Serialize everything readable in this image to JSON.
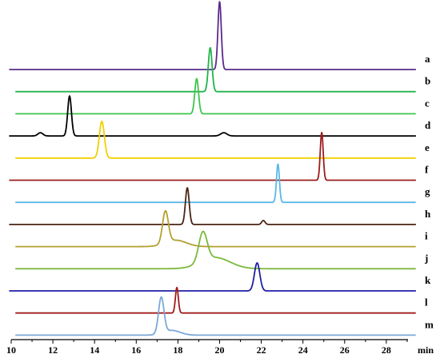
{
  "chart_data": {
    "type": "line",
    "title": "",
    "xlabel": "min",
    "ylabel": "",
    "xlim": [
      10,
      30
    ],
    "x_ticks": [
      10,
      12,
      14,
      16,
      18,
      20,
      22,
      24,
      26,
      28
    ],
    "x_tick_labels": [
      "10",
      "12",
      "14",
      "16",
      "18",
      "20",
      "22",
      "24",
      "26",
      "28"
    ],
    "grid": false,
    "series": [
      {
        "name": "a",
        "color": "#5b2a8c",
        "offset_start": 9.9,
        "peaks": [
          {
            "t": 20.0,
            "h": 85,
            "w": 0.08
          }
        ]
      },
      {
        "name": "b",
        "color": "#22b34a",
        "offset_start": 10.2,
        "peaks": [
          {
            "t": 19.55,
            "h": 55,
            "w": 0.09
          }
        ]
      },
      {
        "name": "c",
        "color": "#3ec54a",
        "offset_start": 10.2,
        "peaks": [
          {
            "t": 18.9,
            "h": 44,
            "w": 0.09
          }
        ]
      },
      {
        "name": "d",
        "color": "#000000",
        "offset_start": 9.9,
        "peaks": [
          {
            "t": 12.8,
            "h": 50,
            "w": 0.09
          },
          {
            "t": 11.4,
            "h": 4,
            "w": 0.12
          },
          {
            "t": 20.2,
            "h": 4,
            "w": 0.15
          }
        ]
      },
      {
        "name": "e",
        "color": "#f0d000",
        "offset_start": 10.2,
        "peaks": [
          {
            "t": 14.35,
            "h": 46,
            "w": 0.12
          }
        ]
      },
      {
        "name": "f",
        "color": "#9b1c1c",
        "offset_start": 9.9,
        "peaks": [
          {
            "t": 24.9,
            "h": 60,
            "w": 0.07
          }
        ]
      },
      {
        "name": "g",
        "color": "#5bb8e8",
        "offset_start": 10.2,
        "peaks": [
          {
            "t": 22.8,
            "h": 48,
            "w": 0.07
          }
        ]
      },
      {
        "name": "h",
        "color": "#4a2414",
        "offset_start": 9.9,
        "peaks": [
          {
            "t": 18.45,
            "h": 46,
            "w": 0.09
          },
          {
            "t": 22.1,
            "h": 5,
            "w": 0.08
          }
        ]
      },
      {
        "name": "i",
        "color": "#b3a030",
        "offset_start": 10.2,
        "peaks": [
          {
            "t": 17.4,
            "h": 40,
            "w": 0.14
          },
          {
            "t": 17.9,
            "h": 8,
            "w": 0.5
          }
        ]
      },
      {
        "name": "j",
        "color": "#7ab93a",
        "offset_start": 10.2,
        "peaks": [
          {
            "t": 19.2,
            "h": 37,
            "w": 0.2
          },
          {
            "t": 19.8,
            "h": 14,
            "w": 0.7
          }
        ]
      },
      {
        "name": "k",
        "color": "#1f1fa8",
        "offset_start": 9.9,
        "peaks": [
          {
            "t": 21.8,
            "h": 35,
            "w": 0.13
          }
        ]
      },
      {
        "name": "l",
        "color": "#a01c1c",
        "offset_start": 10.2,
        "peaks": [
          {
            "t": 17.95,
            "h": 32,
            "w": 0.07
          }
        ]
      },
      {
        "name": "m",
        "color": "#7ba7d8",
        "offset_start": 10.2,
        "peaks": [
          {
            "t": 17.2,
            "h": 45,
            "w": 0.13
          },
          {
            "t": 17.7,
            "h": 6,
            "w": 0.4
          }
        ]
      }
    ]
  }
}
